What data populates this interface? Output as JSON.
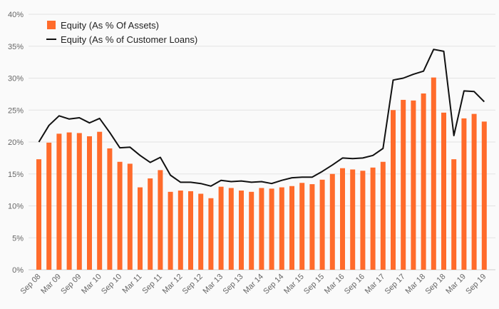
{
  "chart_data": {
    "type": "bar",
    "title": "",
    "xlabel": "",
    "ylabel": "",
    "ylim": [
      0,
      40
    ],
    "y_ticks": [
      "0%",
      "5%",
      "10%",
      "15%",
      "20%",
      "25%",
      "30%",
      "35%",
      "40%"
    ],
    "grid": "horizontal",
    "legend_position": "top-left",
    "categories": [
      "Sep 08",
      "Dec 08",
      "Mar 09",
      "Jun 09",
      "Sep 09",
      "Dec 09",
      "Mar 10",
      "Jun 10",
      "Sep 10",
      "Dec 10",
      "Mar 11",
      "Jun 11",
      "Sep 11",
      "Dec 11",
      "Mar 12",
      "Jun 12",
      "Sep 12",
      "Dec 12",
      "Mar 13",
      "Jun 13",
      "Sep 13",
      "Dec 13",
      "Mar 14",
      "Jun 14",
      "Sep 14",
      "Dec 14",
      "Mar 15",
      "Jun 15",
      "Sep 15",
      "Dec 15",
      "Mar 16",
      "Jun 16",
      "Sep 16",
      "Dec 16",
      "Mar 17",
      "Jun 17",
      "Sep 17",
      "Dec 17",
      "Mar 18",
      "Jun 18",
      "Sep 18",
      "Dec 18",
      "Mar 19",
      "Jun 19",
      "Sep 19"
    ],
    "x_tick_labels": [
      "Sep 08",
      "Mar 09",
      "Sep 09",
      "Mar 10",
      "Sep 10",
      "Mar 11",
      "Sep 11",
      "Mar 12",
      "Sep 12",
      "Mar 13",
      "Sep 13",
      "Mar 14",
      "Sep 14",
      "Mar 15",
      "Sep 15",
      "Mar 16",
      "Sep 16",
      "Mar 17",
      "Sep 17",
      "Mar 18",
      "Sep 18",
      "Mar 19",
      "Sep 19"
    ],
    "series": [
      {
        "name": "Equity (As % Of Assets)",
        "type": "bar",
        "color": "#ff6b2b",
        "values": [
          17.3,
          19.9,
          21.3,
          21.5,
          21.4,
          20.9,
          21.6,
          19.0,
          16.9,
          16.6,
          12.9,
          14.3,
          15.6,
          12.2,
          12.4,
          12.3,
          11.9,
          11.2,
          13.0,
          12.8,
          12.4,
          12.2,
          12.8,
          12.7,
          12.9,
          13.1,
          13.6,
          13.4,
          14.1,
          15.0,
          15.9,
          15.7,
          15.5,
          16.0,
          16.9,
          25.0,
          26.6,
          26.5,
          27.6,
          30.1,
          24.6,
          17.3,
          23.7,
          24.4,
          23.2
        ]
      },
      {
        "name": "Equity (As % of Customer Loans)",
        "type": "line",
        "color": "#111111",
        "values": [
          20.0,
          22.6,
          24.1,
          23.6,
          23.8,
          23.0,
          23.7,
          21.5,
          19.1,
          19.2,
          17.9,
          16.8,
          17.6,
          14.8,
          13.7,
          13.7,
          13.5,
          13.1,
          14.0,
          13.8,
          13.9,
          13.7,
          13.8,
          13.5,
          14.0,
          14.4,
          14.5,
          14.5,
          15.4,
          16.4,
          17.5,
          17.4,
          17.5,
          17.9,
          19.0,
          29.7,
          30.0,
          30.6,
          31.1,
          34.5,
          34.2,
          21.0,
          28.0,
          27.9,
          26.3
        ]
      }
    ]
  },
  "legend": [
    {
      "label": "Equity (As % Of Assets)",
      "swatch": "bar",
      "color": "#ff6b2b"
    },
    {
      "label": "Equity (As % of Customer Loans)",
      "swatch": "line",
      "color": "#111111"
    }
  ],
  "colors": {
    "background": "#fafafa",
    "grid": "#e3e3e3",
    "axis_text": "#666666"
  }
}
